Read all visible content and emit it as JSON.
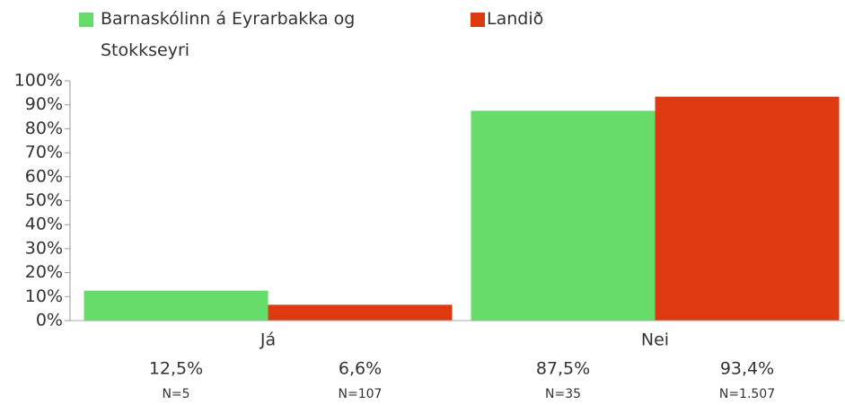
{
  "chart_data": {
    "type": "bar",
    "categories": [
      "Já",
      "Nei"
    ],
    "series": [
      {
        "name": "Barnaskólinn á Eyrarbakka og Stokkseyri",
        "color": "#66dd6a",
        "values": [
          12.5,
          87.5
        ],
        "value_labels": [
          "12,5%",
          "87,5%"
        ],
        "n_labels": [
          "N=5",
          "N=35"
        ]
      },
      {
        "name": "Landið",
        "color": "#dd3a12",
        "values": [
          6.6,
          93.4
        ],
        "value_labels": [
          "6,6%",
          "93,4%"
        ],
        "n_labels": [
          "N=107",
          "N=1.507"
        ]
      }
    ],
    "ylim": [
      0,
      100
    ],
    "yticks": [
      {
        "value": 0,
        "label": "0%"
      },
      {
        "value": 10,
        "label": "10%"
      },
      {
        "value": 20,
        "label": "20%"
      },
      {
        "value": 30,
        "label": "30%"
      },
      {
        "value": 40,
        "label": "40%"
      },
      {
        "value": 50,
        "label": "50%"
      },
      {
        "value": 60,
        "label": "60%"
      },
      {
        "value": 70,
        "label": "70%"
      },
      {
        "value": 80,
        "label": "80%"
      },
      {
        "value": 90,
        "label": "90%"
      },
      {
        "value": 100,
        "label": "100%"
      }
    ]
  }
}
